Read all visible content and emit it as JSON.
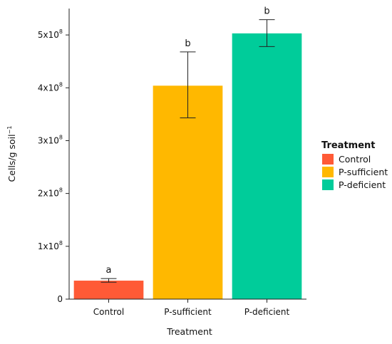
{
  "chart_data": {
    "type": "bar",
    "xlabel": "Treatment",
    "ylabel_main": "Cells/g soil",
    "ylabel_sup": "−1",
    "categories": [
      "Control",
      "P-sufficient",
      "P-deficient"
    ],
    "values": [
      35000000,
      404000000,
      503000000
    ],
    "error_low": [
      32000000,
      343000000,
      478000000
    ],
    "error_high": [
      39000000,
      468000000,
      529000000
    ],
    "significance": [
      "a",
      "b",
      "b"
    ],
    "colors": [
      "#FF5A36",
      "#FFB800",
      "#00CC9A"
    ],
    "ylim": [
      0,
      550000000
    ],
    "yticks": [
      {
        "value": 0,
        "base": "0",
        "exp": ""
      },
      {
        "value": 100000000,
        "base": "1x10",
        "exp": "8"
      },
      {
        "value": 200000000,
        "base": "2x10",
        "exp": "8"
      },
      {
        "value": 300000000,
        "base": "3x10",
        "exp": "8"
      },
      {
        "value": 400000000,
        "base": "4x10",
        "exp": "8"
      },
      {
        "value": 500000000,
        "base": "5x10",
        "exp": "8"
      }
    ],
    "legend": {
      "title": "Treatment",
      "position": "right",
      "entries": [
        "Control",
        "P-sufficient",
        "P-deficient"
      ]
    }
  }
}
